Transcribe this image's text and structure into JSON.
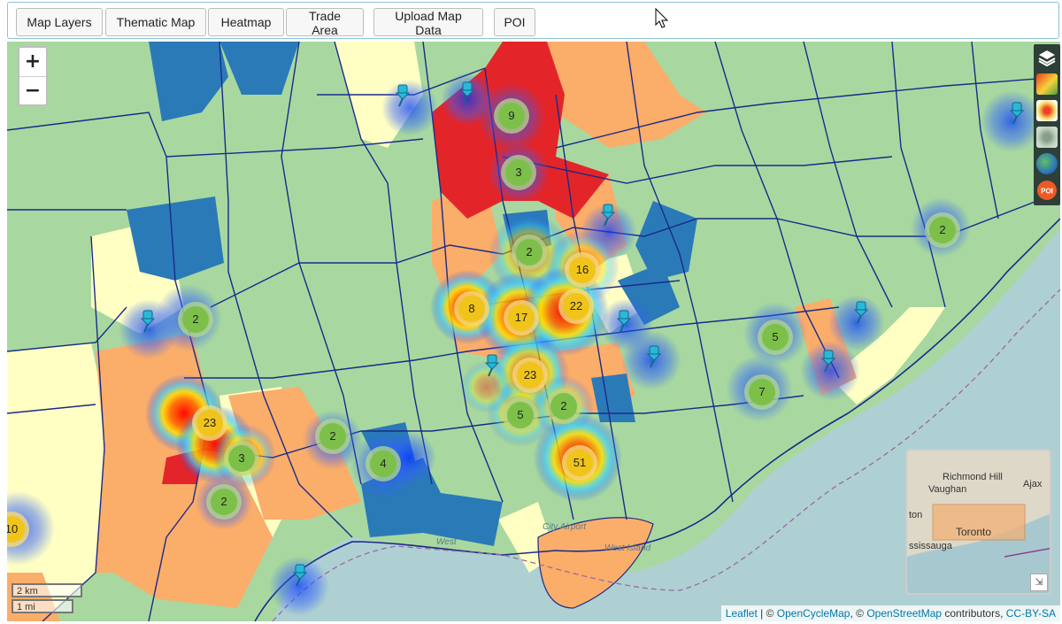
{
  "toolbar": {
    "buttons": [
      "Map Layers",
      "Thematic Map",
      "Heatmap",
      "Trade Area",
      "Upload Map Data",
      "POI"
    ]
  },
  "map": {
    "zoom_in": "+",
    "zoom_out": "−",
    "clusters": [
      {
        "count": "9",
        "color": "#7cc04a"
      },
      {
        "count": "3",
        "color": "#7cc04a"
      },
      {
        "count": "2",
        "color": "#7cc04a"
      },
      {
        "count": "16",
        "color": "#f0c419"
      },
      {
        "count": "8",
        "color": "#f0c419"
      },
      {
        "count": "17",
        "color": "#f0c419"
      },
      {
        "count": "22",
        "color": "#f0c419"
      },
      {
        "count": "23",
        "color": "#f0c419"
      },
      {
        "count": "5",
        "color": "#7cc04a"
      },
      {
        "count": "2",
        "color": "#7cc04a"
      },
      {
        "count": "51",
        "color": "#f0c419"
      },
      {
        "count": "2",
        "color": "#7cc04a"
      },
      {
        "count": "23",
        "color": "#f0c419"
      },
      {
        "count": "3",
        "color": "#7cc04a"
      },
      {
        "count": "2",
        "color": "#7cc04a"
      },
      {
        "count": "2",
        "color": "#7cc04a"
      },
      {
        "count": "4",
        "color": "#7cc04a"
      },
      {
        "count": "2",
        "color": "#7cc04a"
      },
      {
        "count": "5",
        "color": "#7cc04a"
      },
      {
        "count": "7",
        "color": "#7cc04a"
      },
      {
        "count": "10",
        "color": "#f0c419"
      }
    ],
    "water_labels": [
      "City Airport",
      "West Island",
      "West"
    ],
    "layer_controls": [
      "layers-icon",
      "thematic-map-icon",
      "heatmap-icon",
      "trade-area-icon",
      "upload-data-icon",
      "poi-icon"
    ],
    "poi_badge": "POI",
    "scale": {
      "km": "2 km",
      "mi": "1 mi"
    },
    "minimap": {
      "labels": [
        "Richmond Hill",
        "Vaughan",
        "Ajax",
        "Toronto",
        "ton",
        "ssissauga"
      ]
    },
    "attribution": {
      "leaflet": "Leaflet",
      "sep1": " | © ",
      "ocm": "OpenCycleMap",
      "sep2": ", © ",
      "osm": "OpenStreetMap",
      "contrib": " contributors, ",
      "license": "CC-BY-SA"
    },
    "colors": {
      "green": "#a8d8a0",
      "yellow": "#ffffc4",
      "orange": "#fbad6a",
      "red": "#e3252a",
      "blue": "#2a7ab8",
      "water": "#aed0d2",
      "boundary": "#1a2a8a"
    }
  }
}
